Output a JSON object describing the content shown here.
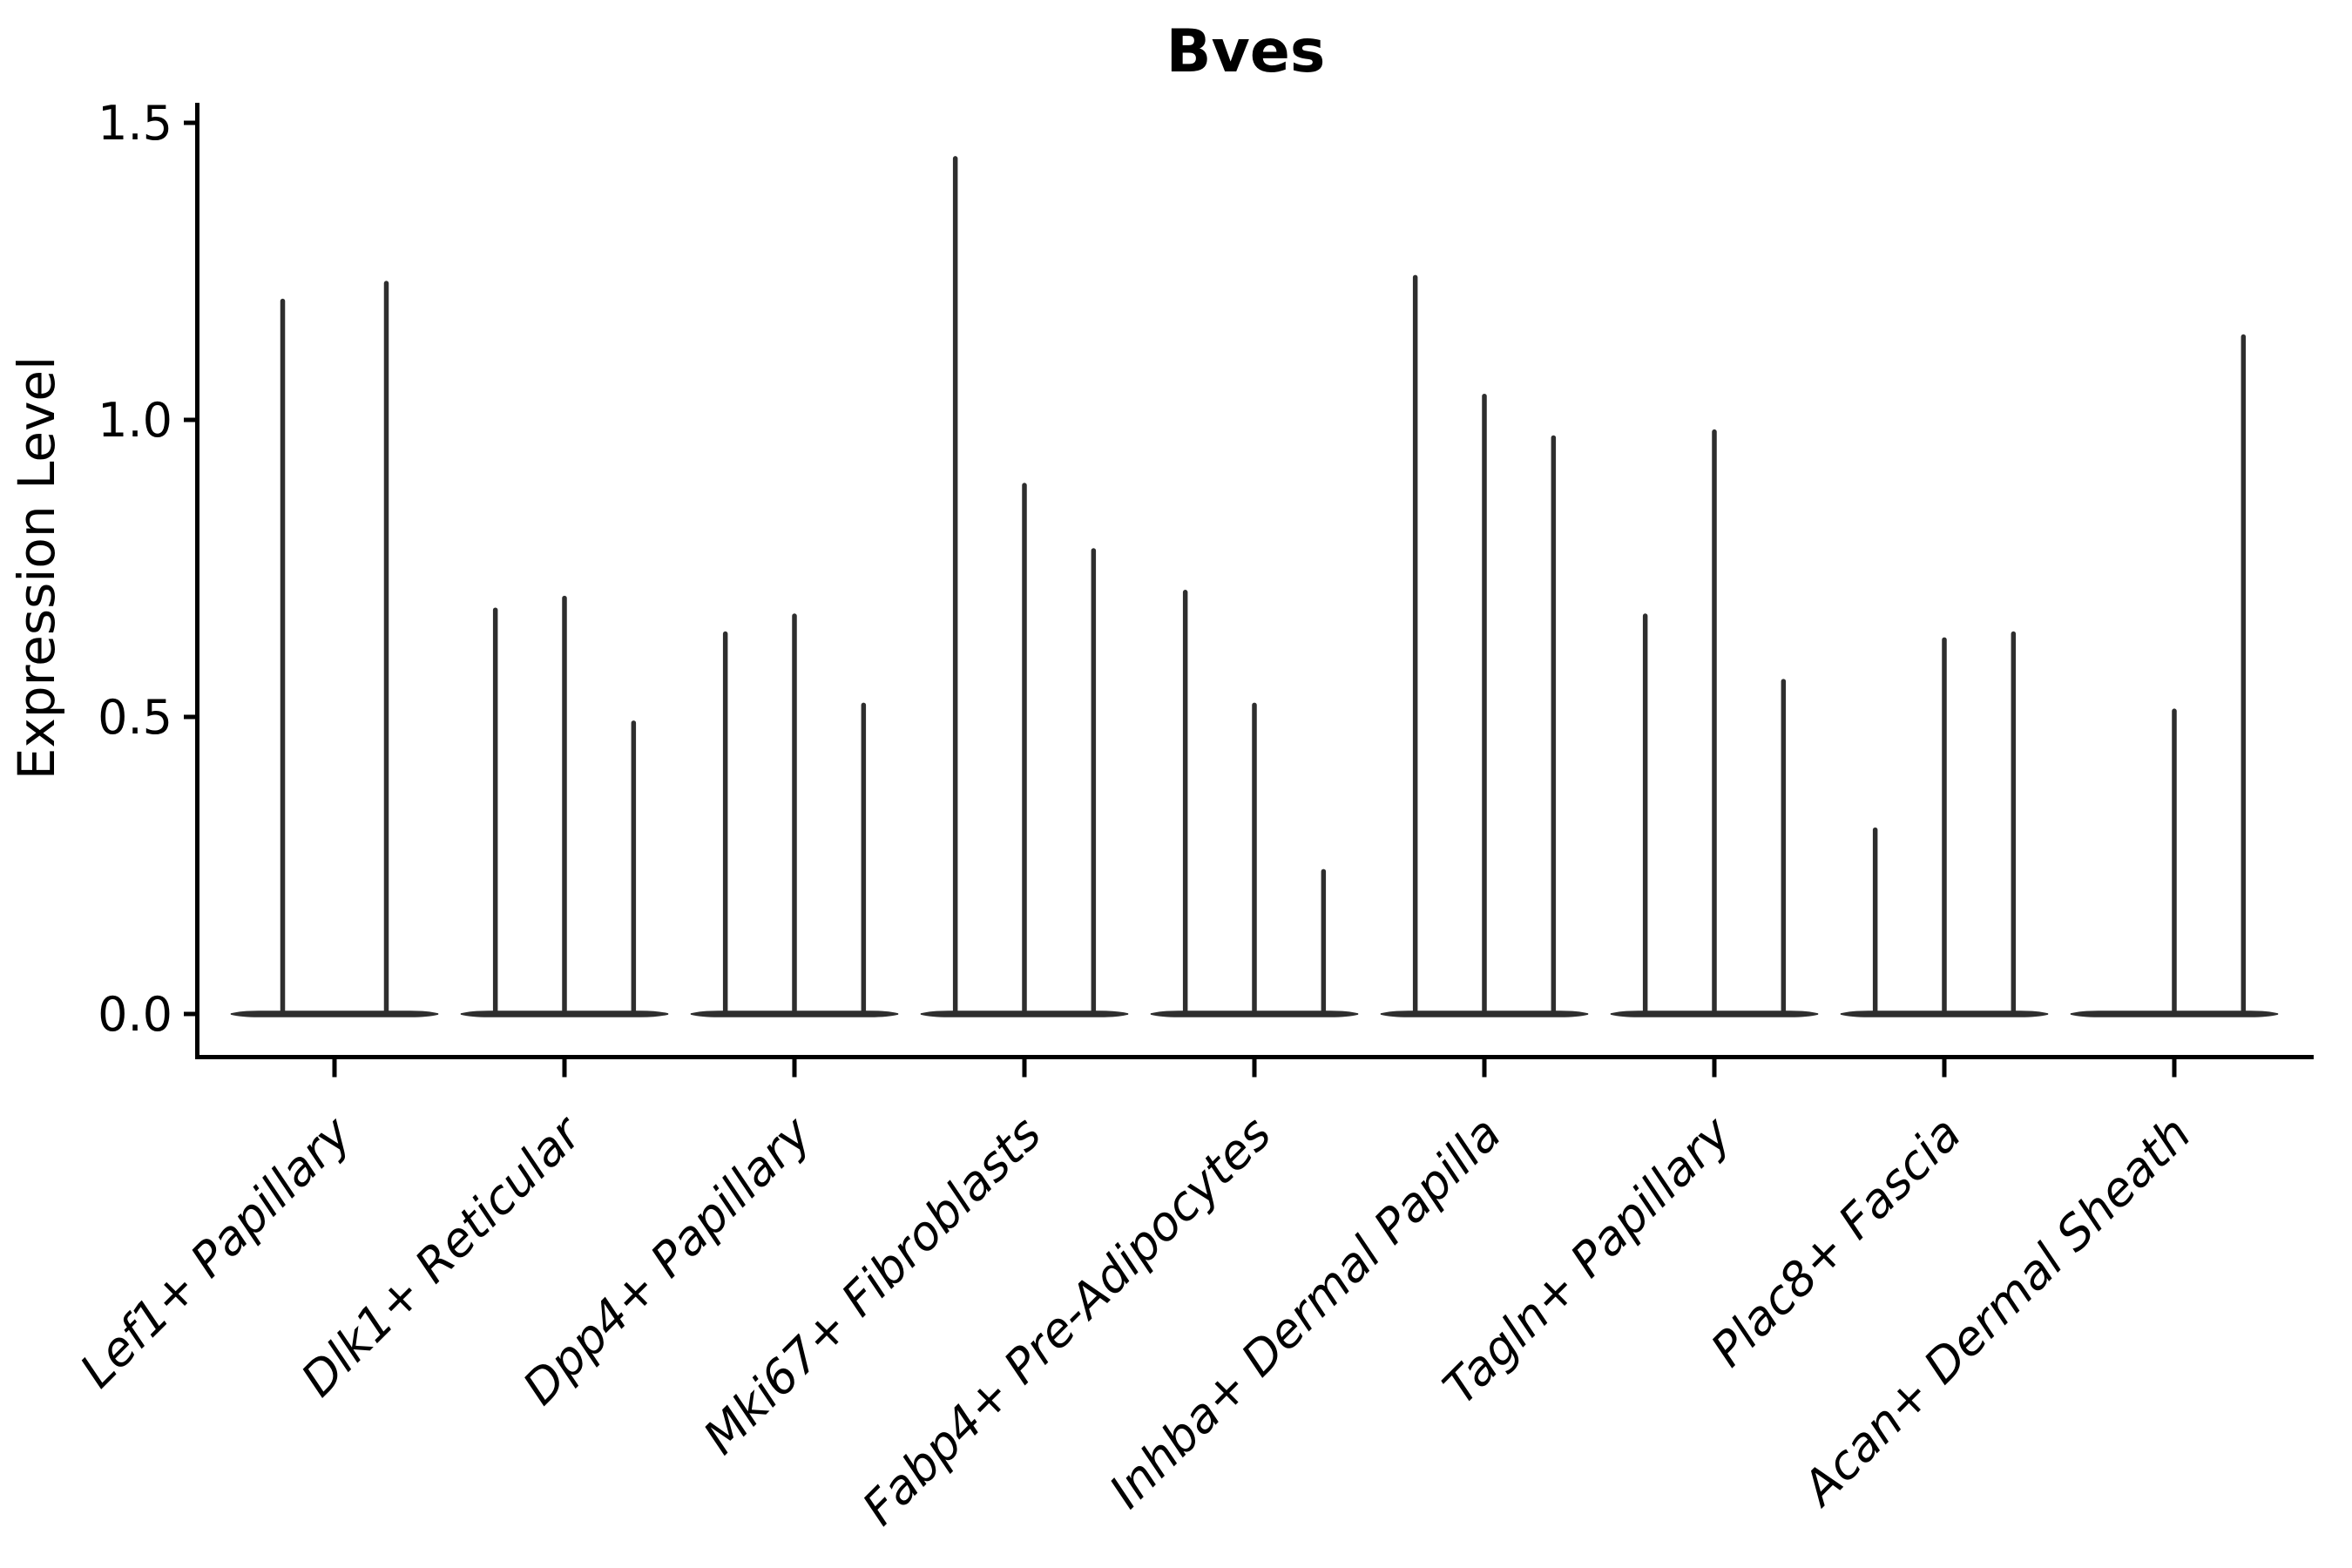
{
  "colors": {
    "violin": "#2e2e2e",
    "axis": "#000000",
    "text": "#000000",
    "background": "#ffffff"
  },
  "chart_data": {
    "type": "violin",
    "title": "Bves",
    "xlabel": "",
    "ylabel": "Expression Level",
    "ylim": [
      0,
      1.5
    ],
    "yticks": [
      0.0,
      0.5,
      1.0,
      1.5
    ],
    "ytick_labels": [
      "0.0",
      "0.5",
      "1.0",
      "1.5"
    ],
    "grid": false,
    "legend": "none",
    "categories": [
      "Lef1+ Papillary",
      "Dlk1+ Reticular",
      "Dpp4+ Papillary",
      "Mki67+ Fibroblasts",
      "Fabp4+ Pre-Adipocytes",
      "Inhba+ Dermal Papilla",
      "Tagln+ Papillary",
      "Plac8+ Fascia",
      "Acan+ Dermal Sheath"
    ],
    "violin_peaks_note": "Each category holds thin violins collapsed at 0; values are the max expression reached by each violin spike (0 = flat violin with no spike).",
    "violins": [
      [
        1.2,
        1.23
      ],
      [
        0.68,
        0.7,
        0.49
      ],
      [
        0.64,
        0.67,
        0.52
      ],
      [
        1.44,
        0.89,
        0.78
      ],
      [
        0.71,
        0.52,
        0.24
      ],
      [
        1.24,
        1.04,
        0.97
      ],
      [
        0.67,
        0.98,
        0.56
      ],
      [
        0.31,
        0.63,
        0.64
      ],
      [
        0.0,
        0.51,
        1.14
      ]
    ]
  }
}
